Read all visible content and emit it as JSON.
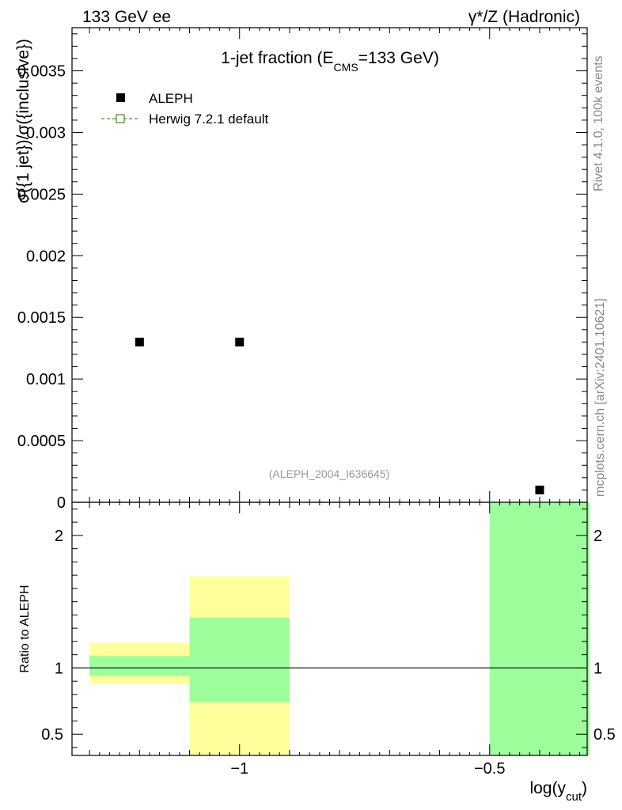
{
  "header": {
    "left": "133 GeV ee",
    "right": "γ*/Z (Hadronic)"
  },
  "sidebar": {
    "rivet": "Rivet 4.1.0,  100k events",
    "mcplots": "mcplots.cern.ch [arXiv:2401.10621]"
  },
  "colors": {
    "data": "#000000",
    "mc": "#4a9a1a",
    "band_inner": "#9cff9c",
    "band_outer": "#ffff9c",
    "watermark": "#999999",
    "sidebar_text": "#888888"
  },
  "chart_data": [
    {
      "type": "scatter",
      "title": "1-jet fraction (E",
      "title_sub": "CMS",
      "title_tail": "=133 GeV)",
      "ylabel": "σ({1 jet})/σ({inclusive})",
      "ylim": [
        0,
        0.00385
      ],
      "xlim": [
        -1.335,
        -0.305
      ],
      "yticks": [
        0,
        0.0005,
        0.001,
        0.0015,
        0.002,
        0.0025,
        0.003,
        0.0035
      ],
      "ytick_labels": [
        "0",
        "0.0005",
        "0.001",
        "0.0015",
        "0.002",
        "0.0025",
        "0.003",
        "0.0035"
      ],
      "watermark": "(ALEPH_2004_I636645)",
      "legend": [
        {
          "label": "ALEPH",
          "style": "marker"
        },
        {
          "label": "Herwig 7.2.1 default",
          "style": "line"
        }
      ],
      "series": [
        {
          "name": "ALEPH",
          "x": [
            -1.2,
            -1.0,
            -0.4
          ],
          "y": [
            0.0013,
            0.0013,
            0.0001
          ]
        }
      ]
    },
    {
      "type": "area",
      "ylabel": "Ratio to ALEPH",
      "xlabel": "log(y",
      "xlabel_sub": "cut",
      "xlabel_tail": ")",
      "ylim": [
        0.34,
        2.25
      ],
      "xlim": [
        -1.335,
        -0.305
      ],
      "yticks": [
        0.5,
        1,
        2
      ],
      "ytick_labels": [
        "0.5",
        "1",
        "2"
      ],
      "xticks": [
        -1,
        -0.5
      ],
      "xtick_labels": [
        "−1",
        "−0.5"
      ],
      "reference_line": 1,
      "bands": [
        {
          "x0": -1.3,
          "x1": -1.1,
          "inner": [
            0.94,
            1.09
          ],
          "outer": [
            0.88,
            1.19
          ]
        },
        {
          "x0": -1.1,
          "x1": -0.9,
          "inner": [
            0.74,
            1.38
          ],
          "outer": [
            0.3,
            1.69
          ]
        },
        {
          "x0": -0.5,
          "x1": -0.3,
          "inner": [
            0.3,
            2.25
          ],
          "outer": [
            0.3,
            2.25
          ]
        }
      ]
    }
  ]
}
